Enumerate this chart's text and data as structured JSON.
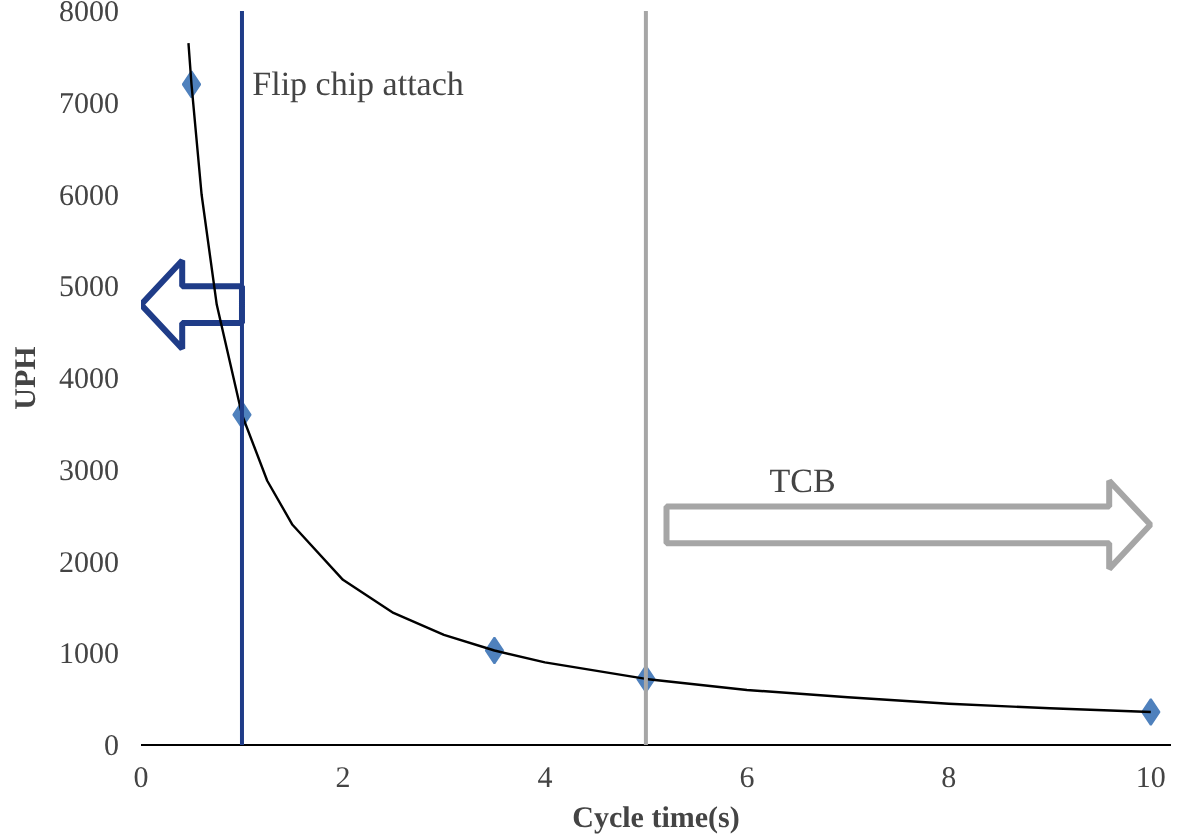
{
  "chart_data": {
    "type": "scatter",
    "xlabel": "Cycle time(s)",
    "ylabel": "UPH",
    "xlim": [
      0,
      10.2
    ],
    "ylim": [
      0,
      8000
    ],
    "xticks": [
      0,
      2,
      4,
      6,
      8,
      10
    ],
    "yticks": [
      0,
      1000,
      2000,
      3000,
      4000,
      5000,
      6000,
      7000,
      8000
    ],
    "grid": false,
    "marker": "diamond",
    "series": [
      {
        "color": "#4f81bd",
        "x": [
          0.5,
          1,
          3.5,
          5,
          10
        ],
        "values": [
          7200,
          3600,
          1030,
          720,
          360
        ]
      },
      {
        "type": "line",
        "color": "#000000",
        "marker": "none",
        "line_style": "solid",
        "x": [
          0.47,
          0.5,
          0.6,
          0.75,
          1,
          1.25,
          1.5,
          2,
          2.5,
          3,
          3.5,
          4,
          5,
          6,
          7,
          8,
          9,
          10
        ],
        "values": [
          7650,
          7200,
          6000,
          4800,
          3600,
          2880,
          2400,
          1800,
          1440,
          1200,
          1030,
          900,
          720,
          600,
          520,
          450,
          400,
          360
        ]
      }
    ],
    "ref_lines": [
      {
        "axis": "x",
        "value": 1,
        "label": null,
        "color": "#1f3c88"
      },
      {
        "axis": "x",
        "value": 5,
        "label": null,
        "color": "#a6a6a6"
      }
    ],
    "annotations": [
      "Flip chip attach",
      "TCB"
    ]
  }
}
